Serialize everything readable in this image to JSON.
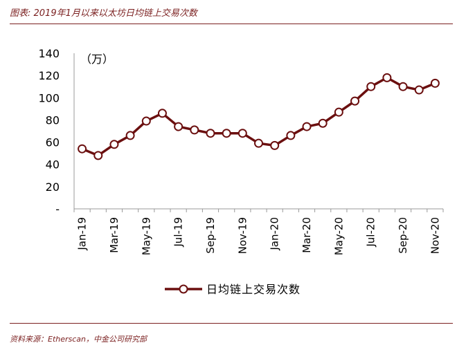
{
  "figure_title": "图表: 2019年1月以来以太坊日均链上交易次数",
  "source_note": "资料来源：Etherscan，中金公司研究部",
  "colors": {
    "accent": "#7a1f1f",
    "line": "#6b0f0f",
    "marker_fill": "#ffffff"
  },
  "chart_data": {
    "type": "line",
    "title": "",
    "unit_label": "（万）",
    "xlabel": "",
    "ylabel": "",
    "ylim": [
      0,
      140
    ],
    "yticks": [
      "-",
      "20",
      "40",
      "60",
      "80",
      "100",
      "120",
      "140"
    ],
    "categories": [
      "Jan-19",
      "Feb-19",
      "Mar-19",
      "Apr-19",
      "May-19",
      "Jun-19",
      "Jul-19",
      "Aug-19",
      "Sep-19",
      "Oct-19",
      "Nov-19",
      "Dec-19",
      "Jan-20",
      "Feb-20",
      "Mar-20",
      "Apr-20",
      "May-20",
      "Jun-20",
      "Jul-20",
      "Aug-20",
      "Sep-20",
      "Oct-20",
      "Nov-20"
    ],
    "x_tick_labels": [
      "Jan-19",
      "Mar-19",
      "May-19",
      "Jul-19",
      "Sep-19",
      "Nov-19",
      "Jan-20",
      "Mar-20",
      "May-20",
      "Jul-20",
      "Sep-20",
      "Nov-20"
    ],
    "series": [
      {
        "name": "日均链上交易次数",
        "values": [
          54,
          48,
          58,
          66,
          79,
          86,
          74,
          71,
          68,
          68,
          68,
          59,
          57,
          66,
          74,
          77,
          87,
          97,
          110,
          118,
          110,
          107,
          113
        ]
      }
    ],
    "grid": false,
    "legend_position": "bottom"
  }
}
